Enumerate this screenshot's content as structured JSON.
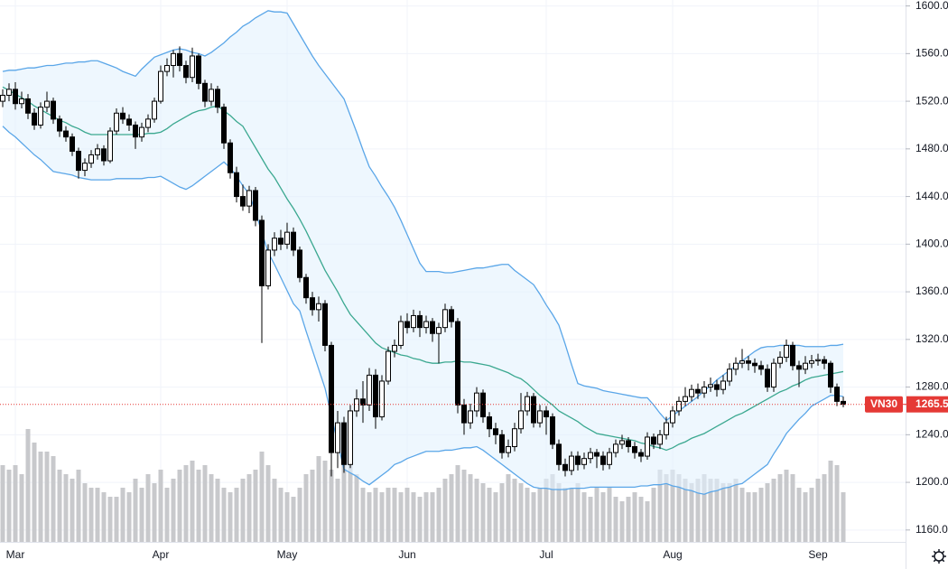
{
  "chart_data": {
    "type": "candlestick",
    "symbol": "VN30",
    "categories": [
      null,
      null,
      "Mar",
      null,
      null,
      null,
      null,
      null,
      null,
      null,
      null,
      null,
      null,
      null,
      null,
      null,
      null,
      null,
      null,
      null,
      null,
      null,
      null,
      null,
      null,
      "Apr",
      null,
      null,
      null,
      null,
      null,
      null,
      null,
      null,
      null,
      null,
      null,
      null,
      null,
      null,
      null,
      null,
      null,
      null,
      null,
      "May",
      null,
      null,
      null,
      null,
      null,
      null,
      null,
      null,
      null,
      null,
      null,
      null,
      null,
      null,
      null,
      null,
      null,
      null,
      "Jun",
      null,
      null,
      null,
      null,
      null,
      null,
      null,
      null,
      null,
      null,
      null,
      null,
      null,
      null,
      null,
      null,
      null,
      null,
      null,
      null,
      null,
      "Jul",
      null,
      null,
      null,
      null,
      null,
      null,
      null,
      null,
      null,
      null,
      null,
      null,
      null,
      null,
      null,
      null,
      null,
      null,
      null,
      "Aug",
      null,
      null,
      null,
      null,
      null,
      null,
      null,
      null,
      null,
      null,
      null,
      null,
      null,
      null,
      null,
      null,
      null,
      null,
      null,
      null,
      null,
      null,
      "Sep",
      null,
      null,
      null,
      null
    ],
    "open": [
      1520,
      1525,
      1530,
      1518,
      1522,
      1510,
      1500,
      1515,
      1520,
      1505,
      1495,
      1490,
      1478,
      1462,
      1468,
      1475,
      1480,
      1470,
      1495,
      1510,
      1505,
      1500,
      1490,
      1498,
      1505,
      1520,
      1545,
      1550,
      1560,
      1550,
      1540,
      1558,
      1535,
      1520,
      1530,
      1515,
      1485,
      1460,
      1440,
      1432,
      1445,
      1420,
      1365,
      1395,
      1405,
      1400,
      1410,
      1395,
      1372,
      1355,
      1345,
      1350,
      1315,
      1225,
      1250,
      1215,
      1260,
      1270,
      1265,
      1290,
      1255,
      1285,
      1310,
      1315,
      1335,
      1330,
      1340,
      1330,
      1335,
      1325,
      1330,
      1345,
      1335,
      1265,
      1250,
      1260,
      1275,
      1255,
      1245,
      1240,
      1225,
      1230,
      1245,
      1260,
      1272,
      1250,
      1260,
      1255,
      1232,
      1215,
      1210,
      1222,
      1215,
      1220,
      1225,
      1222,
      1215,
      1225,
      1232,
      1235,
      1230,
      1225,
      1222,
      1238,
      1232,
      1240,
      1250,
      1260,
      1268,
      1272,
      1278,
      1275,
      1280,
      1282,
      1278,
      1285,
      1295,
      1300,
      1302,
      1300,
      1298,
      1295,
      1280,
      1300,
      1305,
      1315,
      1298,
      1295,
      1300,
      1302,
      1303,
      1300,
      1280,
      1268
    ],
    "high": [
      1530,
      1535,
      1536,
      1528,
      1526,
      1514,
      1519,
      1528,
      1523,
      1508,
      1499,
      1493,
      1481,
      1472,
      1479,
      1484,
      1483,
      1498,
      1514,
      1515,
      1509,
      1503,
      1502,
      1509,
      1523,
      1550,
      1556,
      1563,
      1566,
      1554,
      1565,
      1560,
      1538,
      1535,
      1533,
      1518,
      1488,
      1465,
      1450,
      1449,
      1448,
      1424,
      1400,
      1410,
      1412,
      1418,
      1414,
      1398,
      1375,
      1360,
      1356,
      1353,
      1318,
      1260,
      1255,
      1265,
      1278,
      1285,
      1296,
      1295,
      1290,
      1314,
      1320,
      1340,
      1342,
      1345,
      1344,
      1340,
      1338,
      1334,
      1350,
      1348,
      1338,
      1270,
      1266,
      1280,
      1278,
      1259,
      1250,
      1244,
      1236,
      1250,
      1275,
      1276,
      1275,
      1265,
      1264,
      1258,
      1236,
      1220,
      1226,
      1226,
      1225,
      1229,
      1228,
      1226,
      1229,
      1236,
      1240,
      1238,
      1234,
      1228,
      1242,
      1241,
      1244,
      1255,
      1264,
      1272,
      1280,
      1282,
      1283,
      1285,
      1288,
      1286,
      1290,
      1300,
      1305,
      1312,
      1306,
      1304,
      1302,
      1299,
      1304,
      1310,
      1320,
      1318,
      1302,
      1306,
      1307,
      1308,
      1306,
      1302,
      1283,
      1272
    ],
    "low": [
      1515,
      1520,
      1513,
      1514,
      1505,
      1496,
      1497,
      1511,
      1501,
      1490,
      1486,
      1474,
      1455,
      1457,
      1464,
      1471,
      1466,
      1468,
      1492,
      1501,
      1495,
      1480,
      1486,
      1494,
      1502,
      1518,
      1541,
      1540,
      1545,
      1535,
      1536,
      1530,
      1515,
      1516,
      1510,
      1480,
      1455,
      1435,
      1428,
      1426,
      1415,
      1317,
      1362,
      1390,
      1395,
      1396,
      1390,
      1368,
      1350,
      1340,
      1335,
      1310,
      1205,
      1212,
      1208,
      1212,
      1255,
      1250,
      1260,
      1245,
      1252,
      1282,
      1305,
      1312,
      1325,
      1326,
      1322,
      1325,
      1318,
      1300,
      1326,
      1330,
      1258,
      1240,
      1245,
      1255,
      1250,
      1238,
      1232,
      1220,
      1221,
      1226,
      1241,
      1256,
      1246,
      1246,
      1240,
      1228,
      1210,
      1205,
      1206,
      1210,
      1211,
      1216,
      1212,
      1210,
      1211,
      1221,
      1228,
      1225,
      1220,
      1217,
      1219,
      1228,
      1228,
      1236,
      1246,
      1256,
      1264,
      1268,
      1270,
      1271,
      1276,
      1272,
      1274,
      1281,
      1290,
      1296,
      1294,
      1292,
      1290,
      1276,
      1276,
      1296,
      1301,
      1294,
      1280,
      1291,
      1296,
      1298,
      1295,
      1275,
      1264,
      1263
    ],
    "close": [
      1525,
      1530,
      1518,
      1522,
      1510,
      1500,
      1515,
      1520,
      1505,
      1495,
      1490,
      1478,
      1462,
      1468,
      1475,
      1480,
      1470,
      1495,
      1510,
      1505,
      1500,
      1490,
      1498,
      1505,
      1520,
      1545,
      1550,
      1560,
      1550,
      1540,
      1558,
      1535,
      1520,
      1530,
      1515,
      1485,
      1460,
      1440,
      1432,
      1445,
      1420,
      1365,
      1395,
      1405,
      1400,
      1410,
      1395,
      1372,
      1355,
      1345,
      1350,
      1315,
      1225,
      1250,
      1215,
      1260,
      1270,
      1265,
      1290,
      1255,
      1285,
      1310,
      1315,
      1335,
      1330,
      1340,
      1330,
      1335,
      1325,
      1330,
      1345,
      1335,
      1265,
      1250,
      1260,
      1275,
      1255,
      1245,
      1240,
      1225,
      1230,
      1245,
      1260,
      1272,
      1250,
      1260,
      1255,
      1232,
      1215,
      1210,
      1222,
      1215,
      1220,
      1225,
      1222,
      1215,
      1225,
      1232,
      1235,
      1230,
      1225,
      1222,
      1238,
      1232,
      1240,
      1250,
      1260,
      1268,
      1272,
      1278,
      1275,
      1280,
      1282,
      1278,
      1285,
      1295,
      1300,
      1302,
      1300,
      1298,
      1295,
      1280,
      1300,
      1305,
      1315,
      1298,
      1295,
      1300,
      1302,
      1303,
      1300,
      1280,
      1268,
      1265.5
    ],
    "volume": [
      85,
      80,
      85,
      75,
      125,
      110,
      100,
      100,
      95,
      80,
      75,
      70,
      80,
      65,
      60,
      60,
      55,
      50,
      50,
      60,
      55,
      70,
      60,
      75,
      65,
      80,
      60,
      70,
      80,
      85,
      90,
      80,
      85,
      75,
      70,
      60,
      55,
      60,
      70,
      75,
      80,
      100,
      85,
      70,
      60,
      55,
      50,
      60,
      75,
      80,
      95,
      90,
      80,
      70,
      100,
      90,
      75,
      60,
      55,
      60,
      55,
      60,
      60,
      55,
      60,
      55,
      50,
      55,
      55,
      60,
      70,
      75,
      85,
      80,
      75,
      70,
      65,
      60,
      55,
      65,
      75,
      70,
      65,
      60,
      55,
      60,
      70,
      75,
      65,
      60,
      60,
      65,
      55,
      50,
      60,
      55,
      60,
      50,
      45,
      50,
      55,
      50,
      45,
      60,
      80,
      75,
      80,
      75,
      70,
      65,
      70,
      75,
      70,
      70,
      65,
      65,
      70,
      60,
      55,
      55,
      60,
      65,
      70,
      75,
      80,
      75,
      60,
      55,
      60,
      70,
      75,
      90,
      85,
      55
    ],
    "series": [
      {
        "color": "#5aa6e8",
        "values": [
          1545,
          1546,
          1546,
          1547,
          1548,
          1548,
          1549,
          1550,
          1550,
          1551,
          1552,
          1552,
          1553,
          1553,
          1554,
          1554,
          1552,
          1550,
          1548,
          1545,
          1543,
          1541,
          1547,
          1552,
          1557,
          1559,
          1561,
          1563,
          1564,
          1563,
          1561,
          1560,
          1558,
          1561,
          1565,
          1569,
          1574,
          1578,
          1583,
          1586,
          1590,
          1593,
          1596,
          1595,
          1595,
          1594,
          1585,
          1576,
          1567,
          1558,
          1550,
          1543,
          1536,
          1529,
          1522,
          1508,
          1494,
          1479,
          1465,
          1457,
          1448,
          1440,
          1431,
          1420,
          1408,
          1396,
          1384,
          1377,
          1377,
          1377,
          1376,
          1376,
          1377,
          1378,
          1379,
          1380,
          1380,
          1381,
          1382,
          1383,
          1383,
          1378,
          1374,
          1370,
          1366,
          1358,
          1349,
          1341,
          1332,
          1316,
          1299,
          1283,
          1281,
          1280,
          1279,
          1277,
          1276,
          1275,
          1274,
          1273,
          1272,
          1271,
          1271,
          1265,
          1258,
          1252,
          1256,
          1260,
          1264,
          1268,
          1272,
          1277,
          1281,
          1286,
          1290,
          1294,
          1298,
          1302,
          1306,
          1310,
          1313,
          1314,
          1314,
          1315,
          1315,
          1315,
          1315,
          1314,
          1314,
          1314,
          1314,
          1315,
          1315,
          1316
        ]
      },
      {
        "color": "#3ba890",
        "values": [
          1532,
          1529,
          1526,
          1523,
          1520,
          1516,
          1513,
          1510,
          1507,
          1504,
          1502,
          1499,
          1497,
          1494,
          1492,
          1492,
          1492,
          1492,
          1492,
          1492,
          1492,
          1492,
          1492,
          1493,
          1493,
          1494,
          1497,
          1501,
          1504,
          1507,
          1510,
          1512,
          1513,
          1515,
          1516,
          1512,
          1508,
          1503,
          1499,
          1490,
          1481,
          1472,
          1463,
          1456,
          1447,
          1438,
          1430,
          1421,
          1411,
          1400,
          1389,
          1378,
          1369,
          1360,
          1350,
          1341,
          1335,
          1329,
          1323,
          1317,
          1313,
          1311,
          1309,
          1307,
          1306,
          1304,
          1303,
          1301,
          1300,
          1300,
          1301,
          1301,
          1302,
          1301,
          1301,
          1300,
          1299,
          1298,
          1296,
          1294,
          1292,
          1289,
          1287,
          1283,
          1278,
          1273,
          1269,
          1265,
          1260,
          1257,
          1254,
          1251,
          1247,
          1244,
          1241,
          1240,
          1239,
          1238,
          1237,
          1236,
          1235,
          1233,
          1232,
          1230,
          1229,
          1227,
          1229,
          1232,
          1234,
          1237,
          1239,
          1241,
          1244,
          1247,
          1250,
          1253,
          1256,
          1258,
          1261,
          1264,
          1267,
          1270,
          1273,
          1276,
          1278,
          1281,
          1283,
          1286,
          1288,
          1289,
          1290,
          1291,
          1292,
          1293
        ]
      },
      {
        "color": "#5aa6e8",
        "values": [
          1499,
          1494,
          1490,
          1485,
          1480,
          1475,
          1471,
          1466,
          1461,
          1460,
          1459,
          1458,
          1456,
          1455,
          1454,
          1454,
          1454,
          1454,
          1455,
          1455,
          1455,
          1455,
          1455,
          1456,
          1456,
          1457,
          1454,
          1451,
          1448,
          1446,
          1449,
          1453,
          1457,
          1461,
          1465,
          1469,
          1464,
          1457,
          1449,
          1442,
          1427,
          1410,
          1393,
          1383,
          1372,
          1361,
          1350,
          1344,
          1327,
          1311,
          1295,
          1279,
          1256,
          1233,
          1211,
          1208,
          1205,
          1201,
          1198,
          1202,
          1206,
          1210,
          1215,
          1217,
          1220,
          1222,
          1224,
          1226,
          1226,
          1226,
          1227,
          1227,
          1228,
          1229,
          1229,
          1230,
          1227,
          1223,
          1219,
          1215,
          1211,
          1207,
          1203,
          1199,
          1196,
          1195,
          1195,
          1194,
          1194,
          1194,
          1195,
          1195,
          1195,
          1196,
          1196,
          1196,
          1196,
          1196,
          1196,
          1196,
          1196,
          1197,
          1197,
          1198,
          1198,
          1199,
          1197,
          1196,
          1194,
          1193,
          1191,
          1190,
          1192,
          1193,
          1195,
          1196,
          1198,
          1199,
          1203,
          1207,
          1211,
          1215,
          1224,
          1232,
          1241,
          1247,
          1253,
          1258,
          1264,
          1267,
          1270,
          1273,
          1273,
          1272
        ]
      }
    ],
    "band_fill": "#e3f2fd",
    "up_color": "#ffffff",
    "down_color": "#000000",
    "volume_color": "#c8c9cc",
    "price_line_color": "#e53935",
    "ylim": [
      1150,
      1605
    ],
    "yticks": [
      {
        "value": 1160,
        "label": "1160.0"
      },
      {
        "value": 1200,
        "label": "1200.0"
      },
      {
        "value": 1240,
        "label": "1240.0"
      },
      {
        "value": 1280,
        "label": "1280.0"
      },
      {
        "value": 1320,
        "label": "1320.0"
      },
      {
        "value": 1360,
        "label": "1360.0"
      },
      {
        "value": 1400,
        "label": "1400.0"
      },
      {
        "value": 1440,
        "label": "1440.0"
      },
      {
        "value": 1480,
        "label": "1480.0"
      },
      {
        "value": 1520,
        "label": "1520.0"
      },
      {
        "value": 1560,
        "label": "1560.0"
      },
      {
        "value": 1600,
        "label": "1600.0"
      }
    ],
    "grid": true
  }
}
